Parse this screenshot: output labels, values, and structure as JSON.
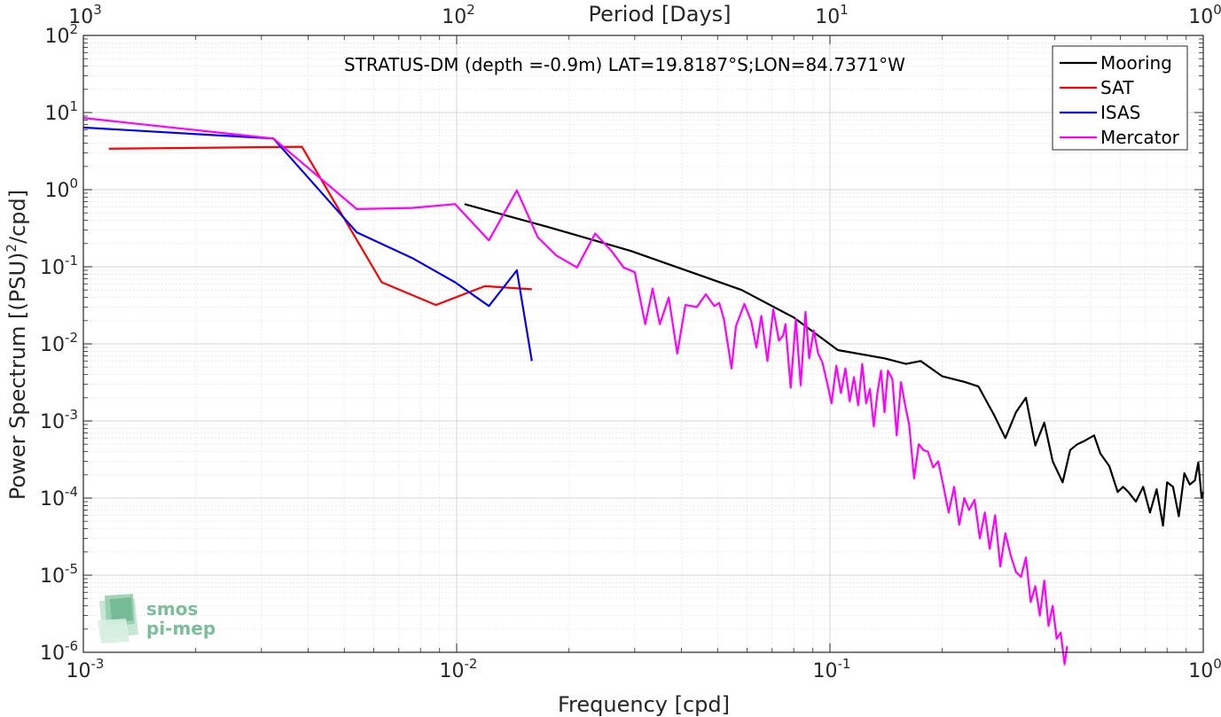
{
  "chart_data": {
    "type": "line",
    "title": "STRATUS-DM (depth =-0.9m) LAT=19.8187°S;LON=84.7371°W",
    "xlabel": "Frequency [cpd]",
    "ylabel": "Power Spectrum [(PSU)",
    "ylabel_sup": "2",
    "ylabel_tail": "/cpd]",
    "top_axis_label": "Period [Days]",
    "x_scale": "log",
    "y_scale": "log",
    "xlim": [
      0.001,
      1
    ],
    "ylim": [
      1e-06,
      100
    ],
    "grid": true,
    "legend_position": "top-right",
    "x_ticks": [
      {
        "value": 0.001,
        "base": "10",
        "exp": "-3"
      },
      {
        "value": 0.01,
        "base": "10",
        "exp": "-2"
      },
      {
        "value": 0.1,
        "base": "10",
        "exp": "-1"
      },
      {
        "value": 1,
        "base": "10",
        "exp": "0"
      }
    ],
    "y_ticks": [
      {
        "value": 1e-06,
        "base": "10",
        "exp": "-6"
      },
      {
        "value": 1e-05,
        "base": "10",
        "exp": "-5"
      },
      {
        "value": 0.0001,
        "base": "10",
        "exp": "-4"
      },
      {
        "value": 0.001,
        "base": "10",
        "exp": "-3"
      },
      {
        "value": 0.01,
        "base": "10",
        "exp": "-2"
      },
      {
        "value": 0.1,
        "base": "10",
        "exp": "-1"
      },
      {
        "value": 1,
        "base": "10",
        "exp": "0"
      },
      {
        "value": 10,
        "base": "10",
        "exp": "1"
      },
      {
        "value": 100,
        "base": "10",
        "exp": "2"
      }
    ],
    "top_ticks": [
      {
        "value": 0.001,
        "base": "10",
        "exp": "3"
      },
      {
        "value": 0.01,
        "base": "10",
        "exp": "2"
      },
      {
        "value": 0.1,
        "base": "10",
        "exp": "1"
      },
      {
        "value": 1,
        "base": "10",
        "exp": "0"
      }
    ],
    "series": [
      {
        "name": "Mooring",
        "color": "#000000",
        "x": [
          0.0105,
          0.0175,
          0.0293,
          0.058,
          0.08,
          0.105,
          0.14,
          0.16,
          0.175,
          0.2,
          0.23,
          0.25,
          0.275,
          0.295,
          0.315,
          0.335,
          0.355,
          0.375,
          0.395,
          0.42,
          0.44,
          0.46,
          0.48,
          0.51,
          0.53,
          0.56,
          0.59,
          0.61,
          0.63,
          0.66,
          0.69,
          0.72,
          0.75,
          0.78,
          0.8,
          0.83,
          0.86,
          0.89,
          0.92,
          0.95,
          0.97,
          0.99,
          1.0
        ],
        "y": [
          0.65,
          0.33,
          0.16,
          0.05,
          0.022,
          0.0083,
          0.0065,
          0.0055,
          0.006,
          0.0038,
          0.0032,
          0.0028,
          0.0012,
          0.0006,
          0.0013,
          0.002,
          0.00048,
          0.00095,
          0.0003,
          0.00016,
          0.00042,
          0.0005,
          0.00055,
          0.00065,
          0.00038,
          0.00026,
          0.00012,
          0.00014,
          0.00012,
          9e-05,
          0.00014,
          6.5e-05,
          0.00013,
          4.4e-05,
          0.00016,
          0.00014,
          5.8e-05,
          0.00021,
          0.00015,
          0.00017,
          0.00029,
          0.0001,
          0.00012
        ]
      },
      {
        "name": "SAT",
        "color": "#ff0000",
        "x": [
          0.00117,
          0.00385,
          0.0063,
          0.0088,
          0.0119,
          0.0159
        ],
        "y": [
          3.4,
          3.6,
          0.063,
          0.032,
          0.056,
          0.051
        ]
      },
      {
        "name": "ISAS",
        "color": "#0000ff",
        "x": [
          0.001,
          0.00323,
          0.0054,
          0.0076,
          0.0099,
          0.0122,
          0.0145,
          0.0159
        ],
        "y": [
          6.4,
          4.6,
          0.28,
          0.13,
          0.063,
          0.031,
          0.09,
          0.006
        ]
      },
      {
        "name": "Mercator",
        "color": "#ff00ff",
        "x": [
          0.001,
          0.00323,
          0.0054,
          0.0076,
          0.0099,
          0.0122,
          0.0145,
          0.0165,
          0.0185,
          0.021,
          0.0235,
          0.026,
          0.028,
          0.03,
          0.032,
          0.0335,
          0.035,
          0.037,
          0.039,
          0.041,
          0.044,
          0.0465,
          0.049,
          0.0505,
          0.052,
          0.0545,
          0.056,
          0.059,
          0.0615,
          0.0635,
          0.0655,
          0.068,
          0.0705,
          0.073,
          0.075,
          0.076,
          0.0785,
          0.081,
          0.0835,
          0.086,
          0.088,
          0.0905,
          0.093,
          0.0955,
          0.0985,
          0.101,
          0.104,
          0.107,
          0.11,
          0.113,
          0.116,
          0.119,
          0.122,
          0.125,
          0.128,
          0.131,
          0.134,
          0.137,
          0.14,
          0.143,
          0.147,
          0.151,
          0.155,
          0.159,
          0.163,
          0.168,
          0.173,
          0.178,
          0.183,
          0.189,
          0.195,
          0.201,
          0.208,
          0.215,
          0.222,
          0.229,
          0.236,
          0.244,
          0.252,
          0.26,
          0.268,
          0.277,
          0.286,
          0.295,
          0.305,
          0.315,
          0.325,
          0.335,
          0.345,
          0.355,
          0.365,
          0.375,
          0.385,
          0.395,
          0.405,
          0.415,
          0.425,
          0.432
        ],
        "y": [
          8.5,
          4.6,
          0.56,
          0.58,
          0.65,
          0.22,
          0.98,
          0.24,
          0.14,
          0.098,
          0.27,
          0.16,
          0.098,
          0.085,
          0.018,
          0.052,
          0.018,
          0.04,
          0.0075,
          0.032,
          0.03,
          0.044,
          0.031,
          0.034,
          0.021,
          0.0048,
          0.017,
          0.033,
          0.02,
          0.009,
          0.023,
          0.006,
          0.028,
          0.011,
          0.013,
          0.018,
          0.0027,
          0.021,
          0.0029,
          0.026,
          0.0065,
          0.015,
          0.0075,
          0.0057,
          0.003,
          0.0017,
          0.0052,
          0.0023,
          0.0048,
          0.0018,
          0.0037,
          0.0016,
          0.0055,
          0.0017,
          0.0026,
          0.00085,
          0.0023,
          0.0045,
          0.0013,
          0.0045,
          0.0035,
          0.00065,
          0.0032,
          0.0016,
          0.0009,
          0.00018,
          0.0005,
          0.00042,
          0.0004,
          0.00025,
          0.0003,
          0.00015,
          6.5e-05,
          0.00014,
          4.5e-05,
          0.0001,
          7e-05,
          9.5e-05,
          3e-05,
          6.5e-05,
          2.2e-05,
          6e-05,
          1.3e-05,
          3.5e-05,
          1.8e-05,
          1.1e-05,
          9.5e-06,
          1.7e-05,
          4.5e-06,
          7.2e-06,
          3e-06,
          8.5e-06,
          2.2e-06,
          4e-06,
          1.5e-06,
          1.8e-06,
          7e-07,
          1.2e-06
        ]
      }
    ]
  },
  "logo": {
    "line1": "smos",
    "line2": "pi-mep",
    "color": "#7bbf9a"
  }
}
